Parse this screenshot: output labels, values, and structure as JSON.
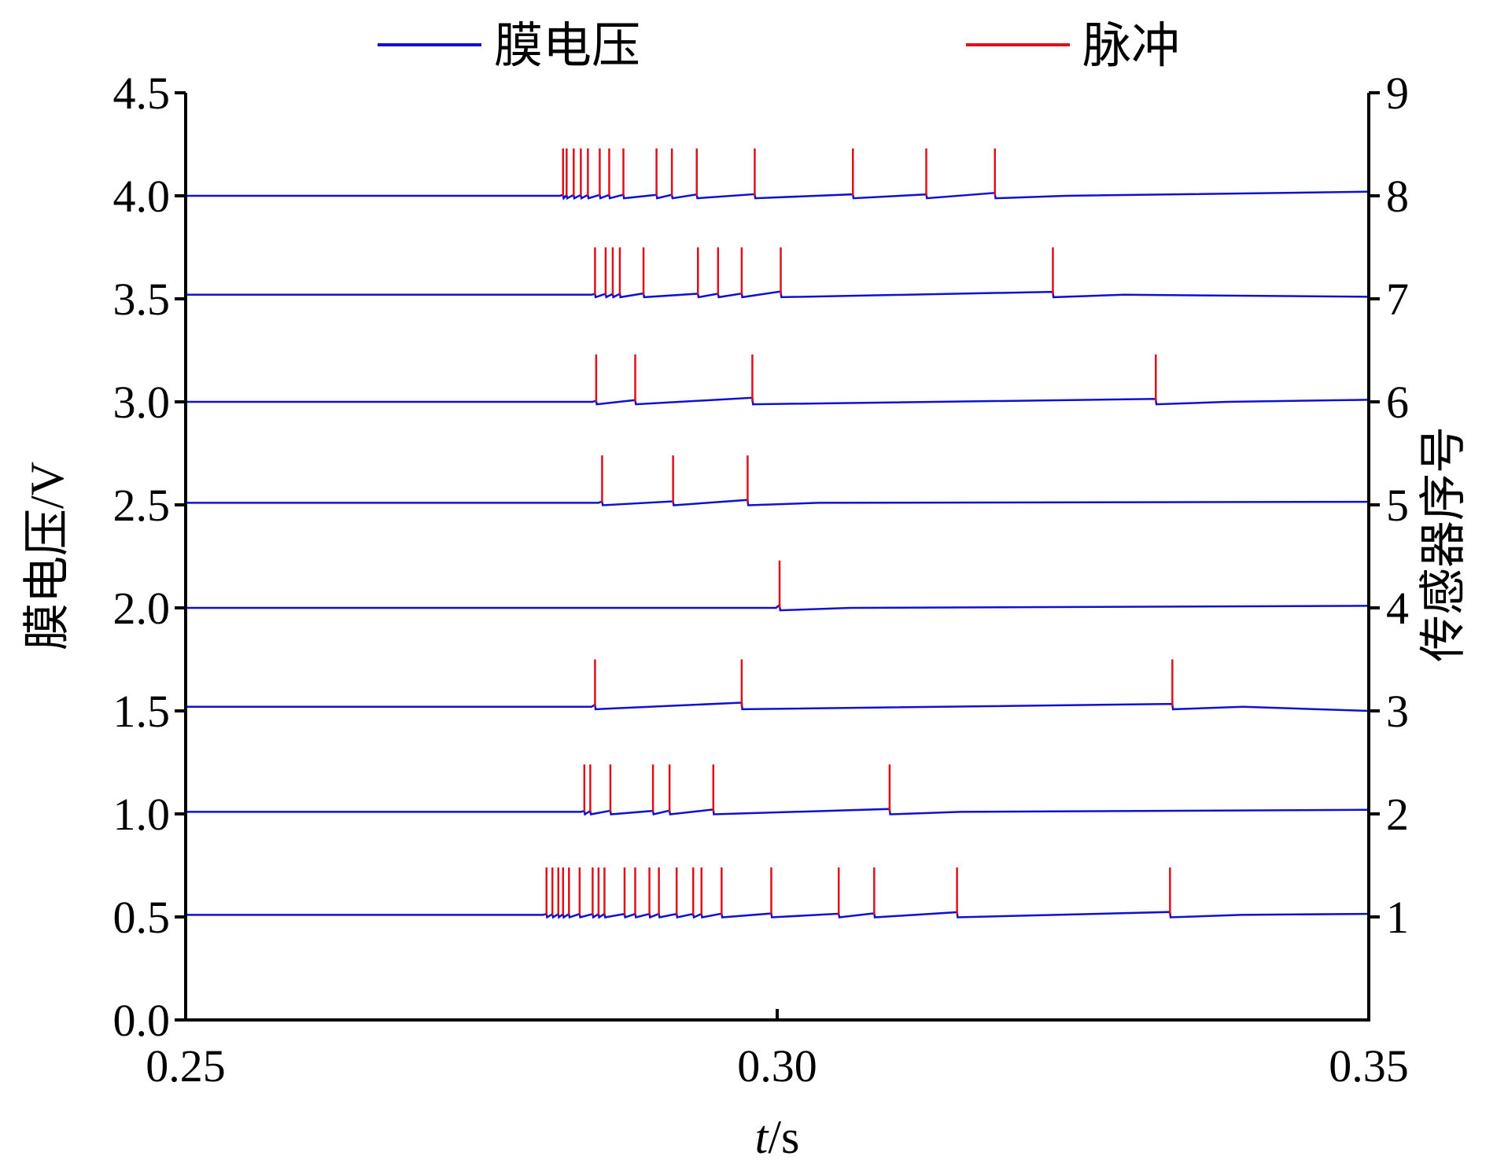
{
  "chart_data": {
    "type": "line",
    "title": "",
    "xlabel": {
      "italic": "t",
      "rest": "/s"
    },
    "ylabel": "膜电压/V",
    "y2label": "传感器序号",
    "xlim": [
      0.25,
      0.35
    ],
    "ylim": [
      0,
      4.5
    ],
    "y2lim": [
      0,
      9
    ],
    "xticks": [
      "0.25",
      "0.30",
      "0.35"
    ],
    "yticks": [
      "0.0",
      "0.5",
      "1.0",
      "1.5",
      "2.0",
      "2.5",
      "3.0",
      "3.5",
      "4.0",
      "4.5"
    ],
    "y2ticks": [
      "1",
      "2",
      "3",
      "4",
      "5",
      "6",
      "7",
      "8",
      "9"
    ],
    "legend": [
      {
        "name": "膜电压",
        "color": "#1010d0"
      },
      {
        "name": "脉冲",
        "color": "#e0101a"
      }
    ],
    "legend_position": "top-center",
    "grid": false,
    "spike_height_v": 0.23,
    "series": [
      {
        "sensor": 1,
        "baseline": 0.51,
        "end_level": 0.515,
        "spikes": [
          0.2805,
          0.281,
          0.2815,
          0.2819,
          0.2824,
          0.2833,
          0.2844,
          0.2849,
          0.2854,
          0.2871,
          0.288,
          0.2892,
          0.29,
          0.2915,
          0.2929,
          0.2936,
          0.2953,
          0.2995,
          0.3052,
          0.3082,
          0.3152,
          0.3332
        ]
      },
      {
        "sensor": 2,
        "baseline": 1.01,
        "end_level": 1.02,
        "spikes": [
          0.2837,
          0.2842,
          0.2859,
          0.2895,
          0.2909,
          0.2946,
          0.3095
        ]
      },
      {
        "sensor": 3,
        "baseline": 1.52,
        "end_level": 1.5,
        "spikes": [
          0.2846,
          0.297,
          0.3334
        ]
      },
      {
        "sensor": 4,
        "baseline": 2.0,
        "end_level": 2.01,
        "spikes": [
          0.3002
        ]
      },
      {
        "sensor": 5,
        "baseline": 2.51,
        "end_level": 2.515,
        "spikes": [
          0.2852,
          0.2912,
          0.2975
        ]
      },
      {
        "sensor": 6,
        "baseline": 3.0,
        "end_level": 3.01,
        "spikes": [
          0.2847,
          0.288,
          0.2979,
          0.332
        ]
      },
      {
        "sensor": 7,
        "baseline": 3.52,
        "end_level": 3.51,
        "spikes": [
          0.2846,
          0.2855,
          0.2861,
          0.2867,
          0.2887,
          0.2933,
          0.295,
          0.297,
          0.3003,
          0.3233
        ]
      },
      {
        "sensor": 8,
        "baseline": 4.0,
        "end_level": 4.02,
        "spikes": [
          0.2819,
          0.2822,
          0.2828,
          0.2834,
          0.284,
          0.285,
          0.2858,
          0.287,
          0.2898,
          0.2911,
          0.2932,
          0.2981,
          0.3064,
          0.3126,
          0.3184
        ]
      }
    ]
  }
}
